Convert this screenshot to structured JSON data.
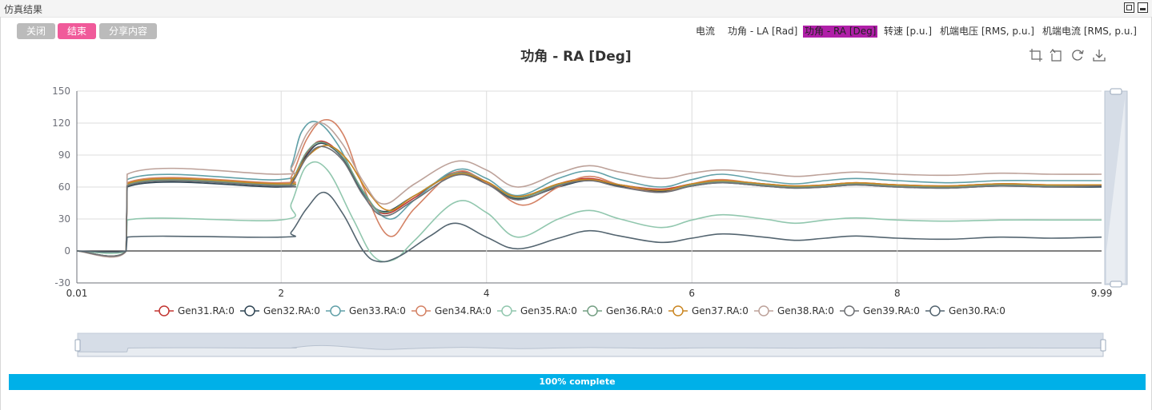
{
  "window": {
    "title": "仿真结果"
  },
  "buttons": {
    "close": "关闭",
    "end": "结束",
    "share": "分享内容"
  },
  "button_colors": {
    "close": "#bbbbbb",
    "end": "#f05a9a",
    "share": "#bbbbbb"
  },
  "tabs": [
    {
      "label": "电流",
      "active": false
    },
    {
      "label": "功角 - LA [Rad]",
      "active": false
    },
    {
      "label": "功角 - RA [Deg]",
      "active": true
    },
    {
      "label": "转速 [p.u.]",
      "active": false
    },
    {
      "label": "机端电压 [RMS, p.u.]",
      "active": false
    },
    {
      "label": "机端电流 [RMS, p.u.]",
      "active": false
    }
  ],
  "toolbox": [
    "zoom-icon",
    "zoom-reset-icon",
    "restore-icon",
    "download-icon"
  ],
  "progress": {
    "value": 1.0,
    "label": "100% complete",
    "color": "#00b0e8"
  },
  "chart_data": {
    "type": "line",
    "title": "功角 - RA [Deg]",
    "xlabel": "",
    "ylabel": "",
    "xlim": [
      0.01,
      9.99
    ],
    "ylim": [
      -30,
      150
    ],
    "x_ticks": [
      "0.01",
      "2",
      "4",
      "6",
      "8",
      "9.99"
    ],
    "y_ticks": [
      "-30",
      "0",
      "30",
      "60",
      "90",
      "120",
      "150"
    ],
    "grid": true,
    "legend": "bottom",
    "dataZoom": {
      "range": [
        0.01,
        9.99
      ]
    },
    "series": [
      {
        "name": "Gen31.RA:0",
        "color": "#c23531",
        "x": [
          0.01,
          0.49,
          0.5,
          1.99,
          2.1,
          2.25,
          2.4,
          2.6,
          2.8,
          3.0,
          3.3,
          3.7,
          4.0,
          4.3,
          4.7,
          5.0,
          5.3,
          5.7,
          6.0,
          6.3,
          6.7,
          7.0,
          7.3,
          7.6,
          8.0,
          8.5,
          9.0,
          9.5,
          9.99
        ],
        "y": [
          0,
          0,
          62,
          62,
          66,
          92,
          103,
          88,
          55,
          35,
          50,
          74,
          65,
          50,
          63,
          68,
          62,
          58,
          63,
          66,
          63,
          61,
          62,
          64,
          62,
          61,
          63,
          62,
          62
        ]
      },
      {
        "name": "Gen32.RA:0",
        "color": "#2f4554",
        "x": [
          0.01,
          0.49,
          0.5,
          1.99,
          2.1,
          2.25,
          2.4,
          2.6,
          2.8,
          3.0,
          3.3,
          3.7,
          4.0,
          4.3,
          4.7,
          5.0,
          5.3,
          5.7,
          6.0,
          6.3,
          6.7,
          7.0,
          7.3,
          7.6,
          8.0,
          8.5,
          9.0,
          9.5,
          9.99
        ],
        "y": [
          0,
          0,
          60,
          60,
          64,
          90,
          101,
          87,
          54,
          37,
          52,
          72,
          64,
          49,
          60,
          66,
          61,
          56,
          61,
          64,
          61,
          59,
          60,
          62,
          60,
          59,
          61,
          60,
          60
        ]
      },
      {
        "name": "Gen33.RA:0",
        "color": "#61a0a8",
        "x": [
          0.01,
          0.49,
          0.5,
          1.99,
          2.1,
          2.2,
          2.35,
          2.55,
          2.8,
          3.05,
          3.3,
          3.7,
          4.0,
          4.3,
          4.7,
          5.0,
          5.3,
          5.7,
          6.0,
          6.3,
          6.7,
          7.0,
          7.3,
          7.6,
          8.0,
          8.5,
          9.0,
          9.5,
          9.99
        ],
        "y": [
          0,
          0,
          67,
          67,
          80,
          112,
          121,
          100,
          55,
          30,
          48,
          76,
          68,
          52,
          68,
          75,
          67,
          60,
          67,
          72,
          66,
          63,
          66,
          68,
          66,
          64,
          66,
          66,
          66
        ]
      },
      {
        "name": "Gen34.RA:0",
        "color": "#d48265",
        "x": [
          0.01,
          0.49,
          0.5,
          1.99,
          2.1,
          2.25,
          2.42,
          2.6,
          2.8,
          3.05,
          3.3,
          3.7,
          4.0,
          4.35,
          4.7,
          5.0,
          5.3,
          5.7,
          6.0,
          6.3,
          6.7,
          7.0,
          7.3,
          7.6,
          8.0,
          8.5,
          9.0,
          9.5,
          9.99
        ],
        "y": [
          0,
          0,
          64,
          64,
          70,
          105,
          123,
          110,
          60,
          14,
          40,
          74,
          64,
          43,
          60,
          70,
          62,
          55,
          63,
          67,
          62,
          60,
          62,
          64,
          62,
          61,
          63,
          62,
          62
        ]
      },
      {
        "name": "Gen35.RA:0",
        "color": "#91c7ae",
        "x": [
          0.01,
          0.49,
          0.5,
          1.99,
          2.1,
          2.25,
          2.45,
          2.7,
          2.9,
          3.1,
          3.3,
          3.7,
          4.0,
          4.3,
          4.7,
          5.0,
          5.3,
          5.7,
          6.0,
          6.3,
          6.7,
          7.0,
          7.3,
          7.6,
          8.0,
          8.5,
          9.0,
          9.5,
          9.99
        ],
        "y": [
          0,
          0,
          29,
          29,
          45,
          80,
          76,
          30,
          -5,
          -8,
          10,
          46,
          36,
          13,
          30,
          38,
          30,
          22,
          29,
          34,
          30,
          26,
          29,
          31,
          29,
          28,
          29,
          29,
          29
        ]
      },
      {
        "name": "Gen36.RA:0",
        "color": "#749f83",
        "x": [
          0.01,
          0.49,
          0.5,
          1.99,
          2.1,
          2.25,
          2.4,
          2.6,
          2.8,
          3.0,
          3.3,
          3.7,
          4.0,
          4.3,
          4.7,
          5.0,
          5.3,
          5.7,
          6.0,
          6.3,
          6.7,
          7.0,
          7.3,
          7.6,
          8.0,
          8.5,
          9.0,
          9.5,
          9.99
        ],
        "y": [
          0,
          0,
          62,
          62,
          66,
          93,
          102,
          88,
          56,
          36,
          52,
          73,
          65,
          50,
          62,
          67,
          62,
          57,
          62,
          65,
          62,
          60,
          61,
          63,
          61,
          60,
          62,
          61,
          61
        ]
      },
      {
        "name": "Gen37.RA:0",
        "color": "#ca8622",
        "x": [
          0.01,
          0.49,
          0.5,
          1.99,
          2.1,
          2.25,
          2.45,
          2.65,
          2.85,
          3.05,
          3.3,
          3.7,
          4.0,
          4.3,
          4.7,
          5.0,
          5.3,
          5.7,
          6.0,
          6.3,
          6.7,
          7.0,
          7.3,
          7.6,
          8.0,
          8.5,
          9.0,
          9.5,
          9.99
        ],
        "y": [
          0,
          0,
          63,
          63,
          66,
          88,
          99,
          85,
          55,
          38,
          52,
          72,
          65,
          51,
          63,
          67,
          62,
          57,
          63,
          66,
          63,
          61,
          62,
          64,
          62,
          61,
          63,
          62,
          62
        ]
      },
      {
        "name": "Gen38.RA:0",
        "color": "#bda29a",
        "x": [
          0.01,
          0.49,
          0.5,
          1.99,
          2.1,
          2.25,
          2.4,
          2.6,
          2.8,
          3.0,
          3.3,
          3.7,
          4.0,
          4.3,
          4.7,
          5.0,
          5.3,
          5.7,
          6.0,
          6.3,
          6.7,
          7.0,
          7.3,
          7.6,
          8.0,
          8.5,
          9.0,
          9.5,
          9.99
        ],
        "y": [
          0,
          0,
          72,
          72,
          78,
          110,
          120,
          100,
          65,
          44,
          63,
          84,
          76,
          60,
          73,
          80,
          74,
          68,
          73,
          76,
          73,
          70,
          72,
          74,
          72,
          71,
          73,
          72,
          72
        ]
      },
      {
        "name": "Gen39.RA:0",
        "color": "#6e7074",
        "x": [
          0.01,
          0.49,
          0.5,
          1.99,
          2.1,
          2.25,
          2.4,
          2.6,
          2.8,
          3.0,
          3.3,
          3.7,
          4.0,
          4.3,
          4.7,
          5.0,
          5.3,
          5.7,
          6.0,
          6.3,
          6.7,
          7.0,
          7.3,
          7.6,
          8.0,
          8.5,
          9.0,
          9.5,
          9.99
        ],
        "y": [
          0,
          0,
          61,
          61,
          63,
          88,
          98,
          85,
          52,
          33,
          48,
          71,
          63,
          48,
          61,
          66,
          60,
          55,
          61,
          64,
          61,
          59,
          60,
          62,
          60,
          59,
          61,
          60,
          61
        ]
      },
      {
        "name": "Gen30.RA:0",
        "color": "#546570",
        "x": [
          0.01,
          0.49,
          0.5,
          1.99,
          2.1,
          2.25,
          2.42,
          2.6,
          2.8,
          2.95,
          3.15,
          3.45,
          3.7,
          4.0,
          4.3,
          4.7,
          5.0,
          5.3,
          5.7,
          6.0,
          6.3,
          6.7,
          7.0,
          7.3,
          7.6,
          8.0,
          8.5,
          9.0,
          9.5,
          9.99
        ],
        "y": [
          0,
          0,
          13,
          13,
          18,
          40,
          55,
          35,
          0,
          -10,
          -5,
          14,
          26,
          13,
          2,
          12,
          19,
          14,
          8,
          12,
          16,
          13,
          10,
          12,
          14,
          12,
          11,
          13,
          12,
          13
        ]
      }
    ]
  }
}
